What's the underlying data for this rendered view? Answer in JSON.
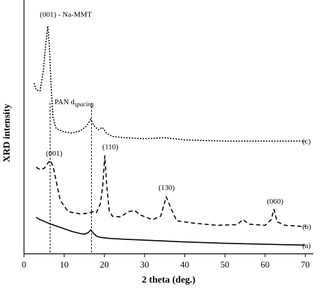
{
  "chart_data": {
    "type": "line",
    "xlabel": "2 theta (deg.)",
    "ylabel": "XRD intensity",
    "xlim": [
      0,
      72
    ],
    "ylim": [
      0,
      100
    ],
    "x_ticks": [
      0,
      10,
      20,
      30,
      40,
      50,
      60,
      70
    ],
    "grid": false,
    "series": [
      {
        "name": "(a)",
        "style": "solid",
        "x": [
          3,
          4,
          6,
          8,
          10,
          12,
          14,
          15,
          16,
          16.6,
          17.2,
          18,
          19,
          21,
          25,
          30,
          40,
          50,
          60,
          70
        ],
        "y": [
          16,
          15,
          13.5,
          12.2,
          11,
          9.8,
          8.9,
          8.6,
          9.3,
          10.5,
          9.2,
          7.8,
          7.2,
          6.8,
          6.4,
          6.0,
          5.2,
          4.6,
          4.2,
          3.8
        ]
      },
      {
        "name": "(b)",
        "style": "dashed",
        "x": [
          3,
          4,
          5,
          6,
          6.6,
          7.3,
          8,
          9,
          11,
          14,
          16,
          17,
          18,
          19,
          19.6,
          20.1,
          20.6,
          21.2,
          22,
          24,
          26,
          27.5,
          29,
          32,
          34,
          35.4,
          36.8,
          38,
          42,
          48,
          53,
          54.5,
          56,
          60,
          61.5,
          62.2,
          63,
          65,
          70
        ],
        "y": [
          38,
          37,
          37.5,
          40,
          41,
          38,
          32,
          23.5,
          18.5,
          17.5,
          17.8,
          18.5,
          18,
          22,
          30,
          43,
          30,
          19,
          16.5,
          16.2,
          18.5,
          19,
          17,
          15,
          16.5,
          25,
          19,
          14.5,
          13.5,
          12.5,
          12.8,
          15,
          13,
          12.5,
          15,
          19.5,
          14,
          12.5,
          12
        ]
      },
      {
        "name": "(c)",
        "style": "dotted",
        "x": [
          2.5,
          3,
          4,
          4.8,
          5.4,
          5.9,
          6.3,
          6.7,
          7.2,
          8,
          10,
          12,
          14,
          15.5,
          16.6,
          17.5,
          18.5,
          19.5,
          20.5,
          22,
          25,
          30,
          35,
          40,
          50,
          60,
          70
        ],
        "y": [
          75,
          72,
          71.5,
          80,
          92,
          100,
          92,
          75,
          60,
          55,
          53.5,
          53,
          54,
          56,
          59,
          56,
          54.5,
          55.5,
          53,
          51.5,
          51,
          50.5,
          51,
          50,
          49.5,
          49.5,
          49.5
        ]
      }
    ],
    "annotations": [
      {
        "text": "(001) - Na-MMT",
        "x": 6.0,
        "y": 104
      },
      {
        "text": "(001)",
        "x": 7.5,
        "y": 43
      },
      {
        "text": "(110)",
        "x": 21.5,
        "y": 46
      },
      {
        "text": "(130)",
        "x": 35.5,
        "y": 28
      },
      {
        "text": "(060)",
        "x": 62.5,
        "y": 22
      }
    ],
    "reference_lines": [
      {
        "x": 6.5,
        "label": ""
      },
      {
        "x": 16.8,
        "label": "PAN d",
        "label_sub": "spacing"
      }
    ]
  }
}
